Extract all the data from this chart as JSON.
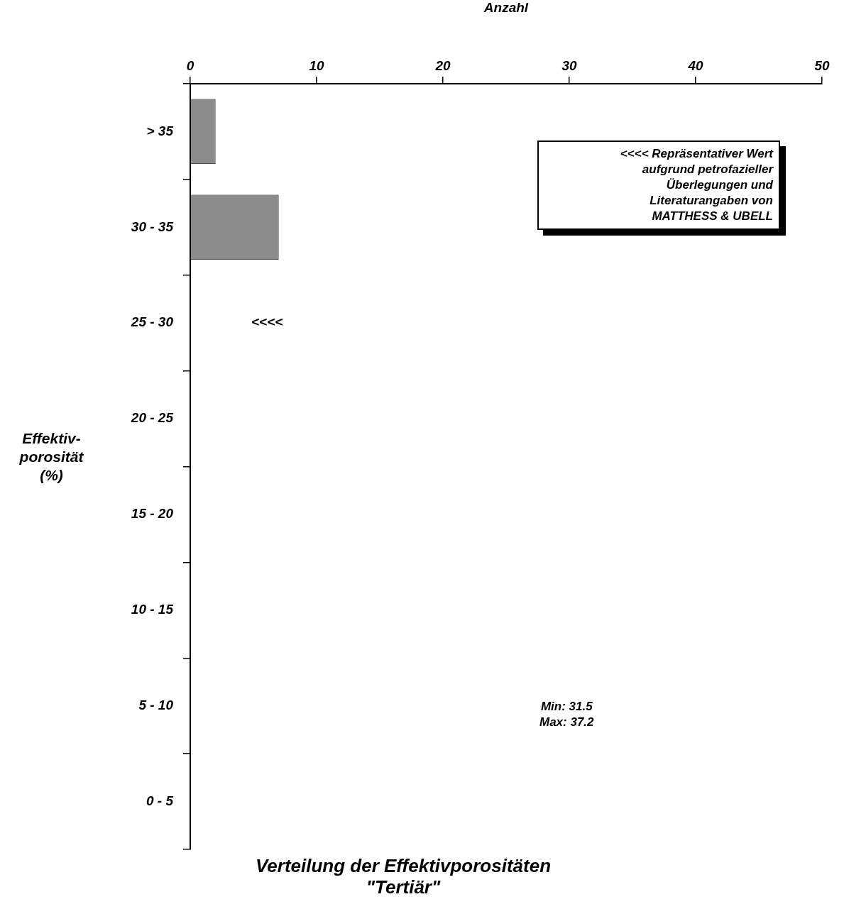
{
  "chart_data": {
    "type": "bar",
    "orientation": "horizontal",
    "title": "Verteilung der Effektivporositäten\n\"Tertiär\"",
    "xlabel": "Anzahl",
    "ylabel": "Effektiv-\nporosität\n(%)",
    "categories": [
      "> 35",
      "30 - 35",
      "25 - 30",
      "20 - 25",
      "15 - 20",
      "10 - 15",
      "5 - 10",
      "0 - 5"
    ],
    "values": [
      2,
      7,
      0,
      0,
      0,
      0,
      0,
      0
    ],
    "color": "#8c8c8c",
    "xlim": [
      0,
      50
    ],
    "xticks": [
      0,
      10,
      20,
      30,
      40,
      50
    ],
    "grid": false,
    "legend": false,
    "annotations": [
      "<<<<",
      "<<<< Repräsentativer Wert\naufgrund petrofazieller\nÜberlegungen und\nLiteraturangaben von\nMATTHESS & UBELL",
      "Min: 31.5\nMax: 37.2"
    ]
  }
}
